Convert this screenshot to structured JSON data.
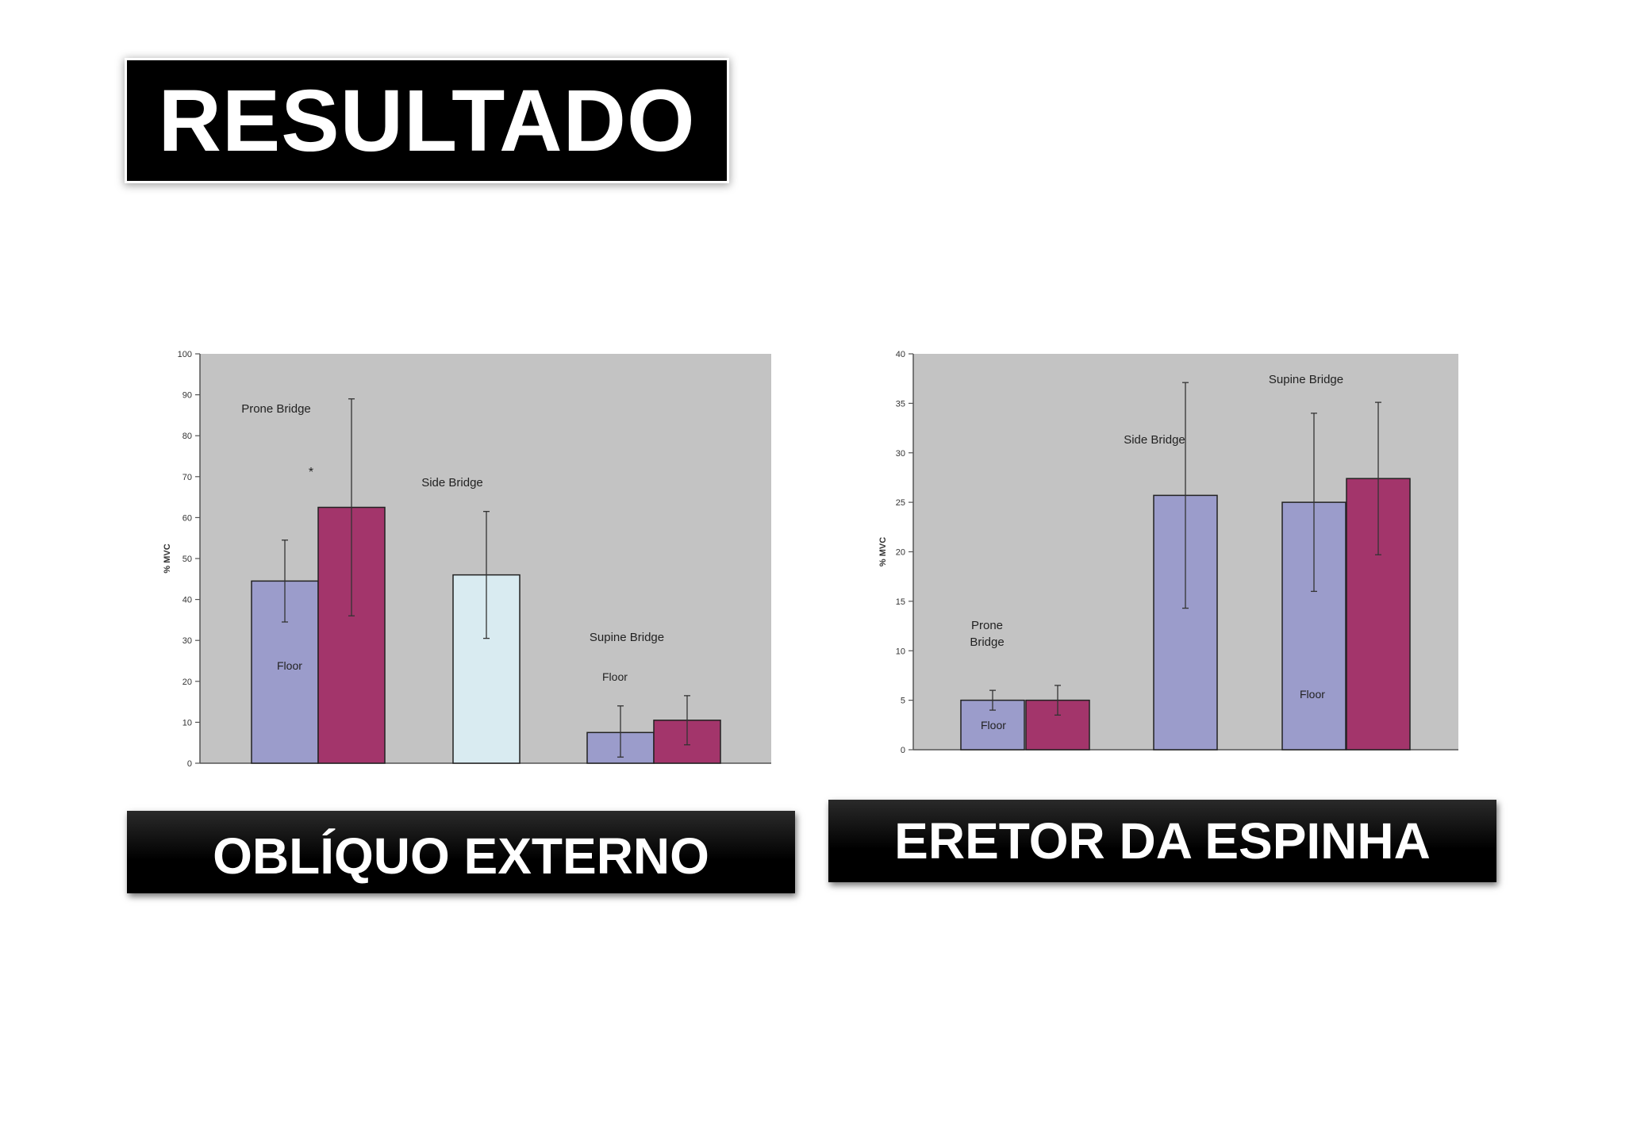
{
  "slide_title": "RESULTADO",
  "chart_data": [
    {
      "type": "bar",
      "caption": "OBLÍQUO EXTERNO",
      "ylabel": "% MVC",
      "ylim": [
        0,
        100
      ],
      "yticks": [
        0,
        10,
        20,
        30,
        40,
        50,
        60,
        70,
        80,
        90,
        100
      ],
      "groups": [
        {
          "label": "Prone Bridge",
          "sublabel": "Floor",
          "marker": "*",
          "bars": [
            {
              "value": 44.5,
              "err_low": 34.5,
              "err_high": 54.5,
              "color": "#9b9ccb"
            },
            {
              "value": 62.5,
              "err_low": 36,
              "err_high": 89,
              "color": "#a3356b"
            }
          ]
        },
        {
          "label": "Side Bridge",
          "sublabel": "",
          "bars": [
            {
              "value": 46,
              "err_low": 30.5,
              "err_high": 61.5,
              "color": "#d9ebf1"
            }
          ]
        },
        {
          "label": "Supine Bridge",
          "sublabel": "Floor",
          "bars": [
            {
              "value": 7.5,
              "err_low": 1.5,
              "err_high": 14,
              "color": "#9b9ccb"
            },
            {
              "value": 10.5,
              "err_low": 4.5,
              "err_high": 16.5,
              "color": "#a3356b"
            }
          ]
        }
      ]
    },
    {
      "type": "bar",
      "caption": "ERETOR DA ESPINHA",
      "ylabel": "% MVC",
      "ylim": [
        0,
        40
      ],
      "yticks": [
        0,
        5,
        10,
        15,
        20,
        25,
        30,
        35,
        40
      ],
      "groups": [
        {
          "label": "Prone Bridge",
          "sublabel": "Floor",
          "bars": [
            {
              "value": 5,
              "err_low": 4,
              "err_high": 6,
              "color": "#9b9ccb"
            },
            {
              "value": 5,
              "err_low": 3.5,
              "err_high": 6.5,
              "color": "#a3356b"
            }
          ]
        },
        {
          "label": "Side Bridge",
          "sublabel": "",
          "bars": [
            {
              "value": 25.7,
              "err_low": 14.3,
              "err_high": 37.1,
              "color": "#9b9ccb"
            }
          ]
        },
        {
          "label": "Supine Bridge",
          "sublabel": "Floor",
          "bars": [
            {
              "value": 25,
              "err_low": 16,
              "err_high": 34,
              "color": "#9b9ccb"
            },
            {
              "value": 27.4,
              "err_low": 19.7,
              "err_high": 35.1,
              "color": "#a3356b"
            }
          ]
        }
      ]
    }
  ]
}
